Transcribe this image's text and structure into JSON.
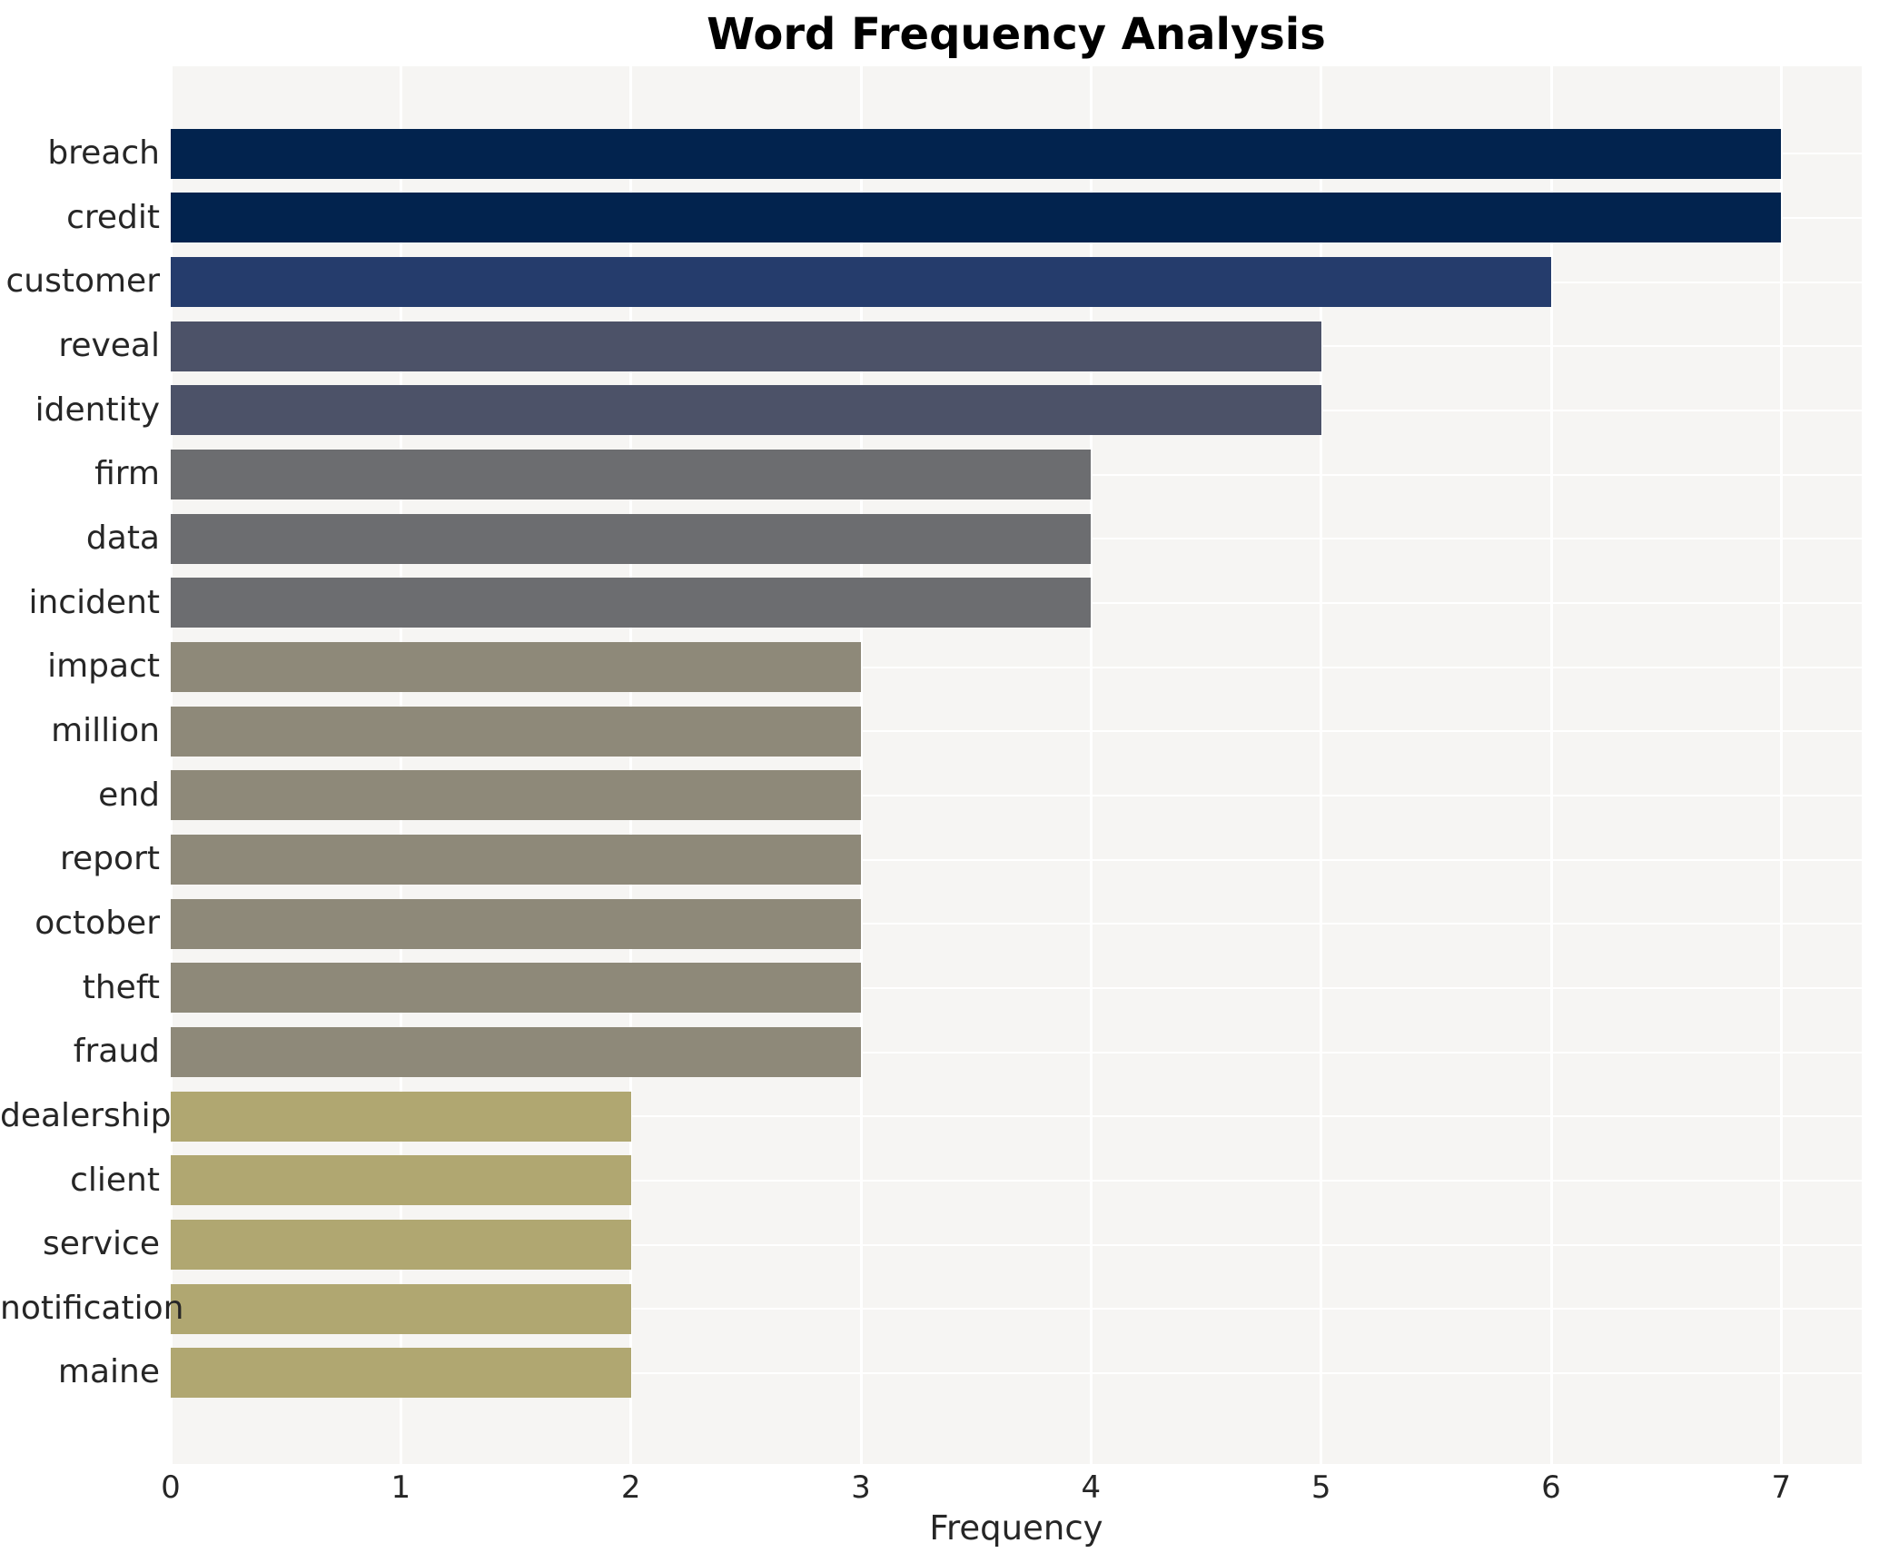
{
  "chart_data": {
    "type": "bar",
    "orientation": "horizontal",
    "title": "Word Frequency Analysis",
    "xlabel": "Frequency",
    "ylabel": "",
    "categories": [
      "breach",
      "credit",
      "customer",
      "reveal",
      "identity",
      "firm",
      "data",
      "incident",
      "impact",
      "million",
      "end",
      "report",
      "october",
      "theft",
      "fraud",
      "dealership",
      "client",
      "service",
      "notification",
      "maine"
    ],
    "values": [
      7,
      7,
      6,
      5,
      5,
      4,
      4,
      4,
      3,
      3,
      3,
      3,
      3,
      3,
      3,
      2,
      2,
      2,
      2,
      2
    ],
    "bar_colors": [
      "#02234e",
      "#02234e",
      "#253c6c",
      "#4c5268",
      "#4c5268",
      "#6c6d70",
      "#6c6d70",
      "#6c6d70",
      "#8e8979",
      "#8e8979",
      "#8e8979",
      "#8e8979",
      "#8e8979",
      "#8e8979",
      "#8e8979",
      "#b0a771",
      "#b0a771",
      "#b0a771",
      "#b0a771",
      "#b0a771"
    ],
    "value_color_map": {
      "7": "#02234e",
      "6": "#253c6c",
      "5": "#4c5268",
      "4": "#6c6d70",
      "3": "#8e8979",
      "2": "#b0a771"
    },
    "x_ticks": [
      0,
      1,
      2,
      3,
      4,
      5,
      6,
      7
    ],
    "xlim": [
      0,
      7.35
    ],
    "grid": "white vertical and horizontal gridlines on",
    "legend": "none",
    "plot_bg_color": "#f6f5f3",
    "figure_bg_color": "#ffffff",
    "text_color": "#262626",
    "title_color": "#000000"
  }
}
